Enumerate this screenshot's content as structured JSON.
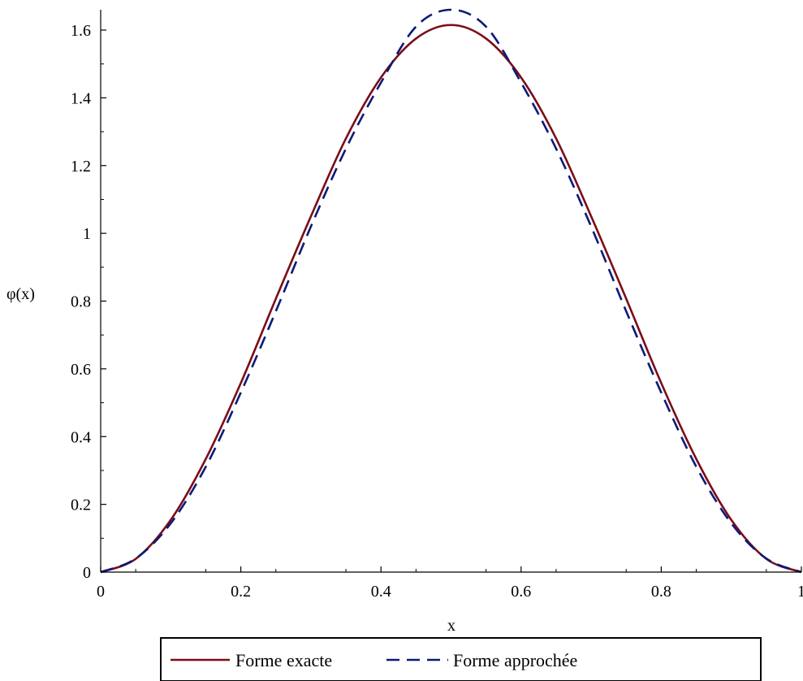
{
  "chart_data": {
    "type": "line",
    "title": "",
    "xlabel": "x",
    "ylabel": "φ(x)",
    "xlim": [
      0,
      1
    ],
    "ylim": [
      0,
      1.6
    ],
    "x_ticks": [
      {
        "value": 0,
        "label": "0"
      },
      {
        "value": 0.2,
        "label": "0.2"
      },
      {
        "value": 0.4,
        "label": "0.4"
      },
      {
        "value": 0.6,
        "label": "0.6"
      },
      {
        "value": 0.8,
        "label": "0.8"
      },
      {
        "value": 1.0,
        "label": "1"
      }
    ],
    "y_ticks": [
      {
        "value": 0,
        "label": "0"
      },
      {
        "value": 0.2,
        "label": "0.2"
      },
      {
        "value": 0.4,
        "label": "0.4"
      },
      {
        "value": 0.6,
        "label": "0.6"
      },
      {
        "value": 0.8,
        "label": "0.8"
      },
      {
        "value": 1.0,
        "label": "1"
      },
      {
        "value": 1.2,
        "label": "1.2"
      },
      {
        "value": 1.4,
        "label": "1.4"
      },
      {
        "value": 1.6,
        "label": "1.6"
      }
    ],
    "grid": false,
    "legend_position": "bottom",
    "series": [
      {
        "name": "Forme exacte",
        "color": "#7a0d17",
        "style": "solid",
        "x": [
          0,
          0.05,
          0.1,
          0.15,
          0.2,
          0.25,
          0.3,
          0.35,
          0.4,
          0.45,
          0.5,
          0.55,
          0.6,
          0.65,
          0.7,
          0.75,
          0.8,
          0.85,
          0.9,
          0.95,
          1.0
        ],
        "y": [
          0,
          0.039,
          0.154,
          0.334,
          0.558,
          0.807,
          1.05,
          1.28,
          1.46,
          1.575,
          1.615,
          1.575,
          1.46,
          1.28,
          1.05,
          0.807,
          0.558,
          0.334,
          0.154,
          0.039,
          0
        ]
      },
      {
        "name": "Forme approchée",
        "color": "#0c1a78",
        "style": "dashed",
        "x": [
          0,
          0.05,
          0.1,
          0.15,
          0.2,
          0.25,
          0.3,
          0.35,
          0.4,
          0.45,
          0.5,
          0.55,
          0.6,
          0.65,
          0.7,
          0.75,
          0.8,
          0.85,
          0.9,
          0.95,
          1.0
        ],
        "y": [
          0,
          0.04,
          0.144,
          0.311,
          0.53,
          0.77,
          1.02,
          1.25,
          1.445,
          1.61,
          1.66,
          1.61,
          1.445,
          1.25,
          1.02,
          0.77,
          0.53,
          0.311,
          0.144,
          0.04,
          0
        ]
      }
    ]
  }
}
